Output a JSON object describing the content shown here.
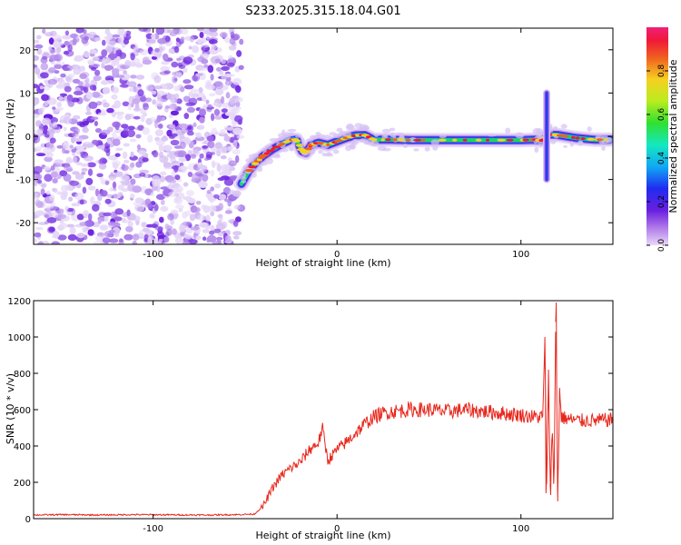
{
  "figure": {
    "title": "S233.2025.315.18.04.G01"
  },
  "chart_data": [
    {
      "type": "heatmap",
      "xlabel": "Height of straight line (km)",
      "ylabel": "Frequency (Hz)",
      "xlim": [
        -165,
        150
      ],
      "ylim": [
        -25,
        25
      ],
      "xticks": [
        -100,
        0,
        100
      ],
      "yticks": [
        -20,
        -10,
        0,
        10,
        20
      ],
      "colorbar": {
        "label": "Normalized spectral amplitude",
        "range": [
          0,
          1
        ],
        "ticks": [
          "0.0",
          "0.2",
          "0.4",
          "0.6",
          "0.8"
        ]
      },
      "noise_region": {
        "x_range": [
          -165,
          -52
        ]
      },
      "ridge": {
        "x": [
          -52,
          -48,
          -44,
          -40,
          -35,
          -30,
          -25,
          -22,
          -19,
          -17,
          -14,
          -10,
          -5,
          0,
          5,
          10,
          15,
          20,
          30,
          40,
          60,
          80,
          100,
          108,
          111,
          112,
          114,
          116,
          120,
          130,
          140,
          148
        ],
        "y": [
          -11,
          -8,
          -6,
          -4.5,
          -3,
          -1.8,
          -0.8,
          -0.8,
          -3.5,
          -3.8,
          -2.0,
          -1.5,
          -2.0,
          -1.2,
          -0.4,
          0.2,
          0.3,
          -0.8,
          -0.8,
          -0.9,
          -0.9,
          -0.9,
          -0.9,
          -0.8,
          -1.0,
          -0.9,
          0.2,
          0.4,
          0.3,
          -0.4,
          -0.8,
          -0.8
        ]
      },
      "spike": {
        "x": 114,
        "y_range": [
          -10,
          10
        ]
      }
    },
    {
      "type": "line",
      "xlabel": "Height of straight line (km)",
      "ylabel": "SNR (10 * v/v)",
      "xlim": [
        -165,
        150
      ],
      "ylim": [
        0,
        1200
      ],
      "xticks": [
        -100,
        0,
        100
      ],
      "yticks": [
        0,
        200,
        400,
        600,
        800,
        1000,
        1200
      ],
      "color": "#e8281e",
      "series": [
        {
          "x": [
            -165,
            -150,
            -130,
            -110,
            -90,
            -70,
            -55,
            -45,
            -40,
            -35,
            -30,
            -25,
            -20,
            -15,
            -10,
            -8,
            -5,
            0,
            5,
            10,
            15,
            20,
            25,
            30,
            40,
            50,
            60,
            70,
            80,
            90,
            100,
            108,
            112,
            113,
            114,
            115,
            116,
            117,
            118,
            119,
            120,
            121,
            122,
            125,
            130,
            140,
            150
          ],
          "y": [
            20,
            22,
            20,
            22,
            21,
            20,
            22,
            25,
            70,
            170,
            240,
            280,
            310,
            380,
            420,
            500,
            320,
            380,
            420,
            470,
            520,
            560,
            580,
            590,
            600,
            600,
            590,
            600,
            590,
            580,
            570,
            560,
            560,
            1000,
            130,
            800,
            120,
            550,
            120,
            1190,
            100,
            700,
            560,
            550,
            540,
            540,
            545
          ]
        }
      ]
    }
  ]
}
